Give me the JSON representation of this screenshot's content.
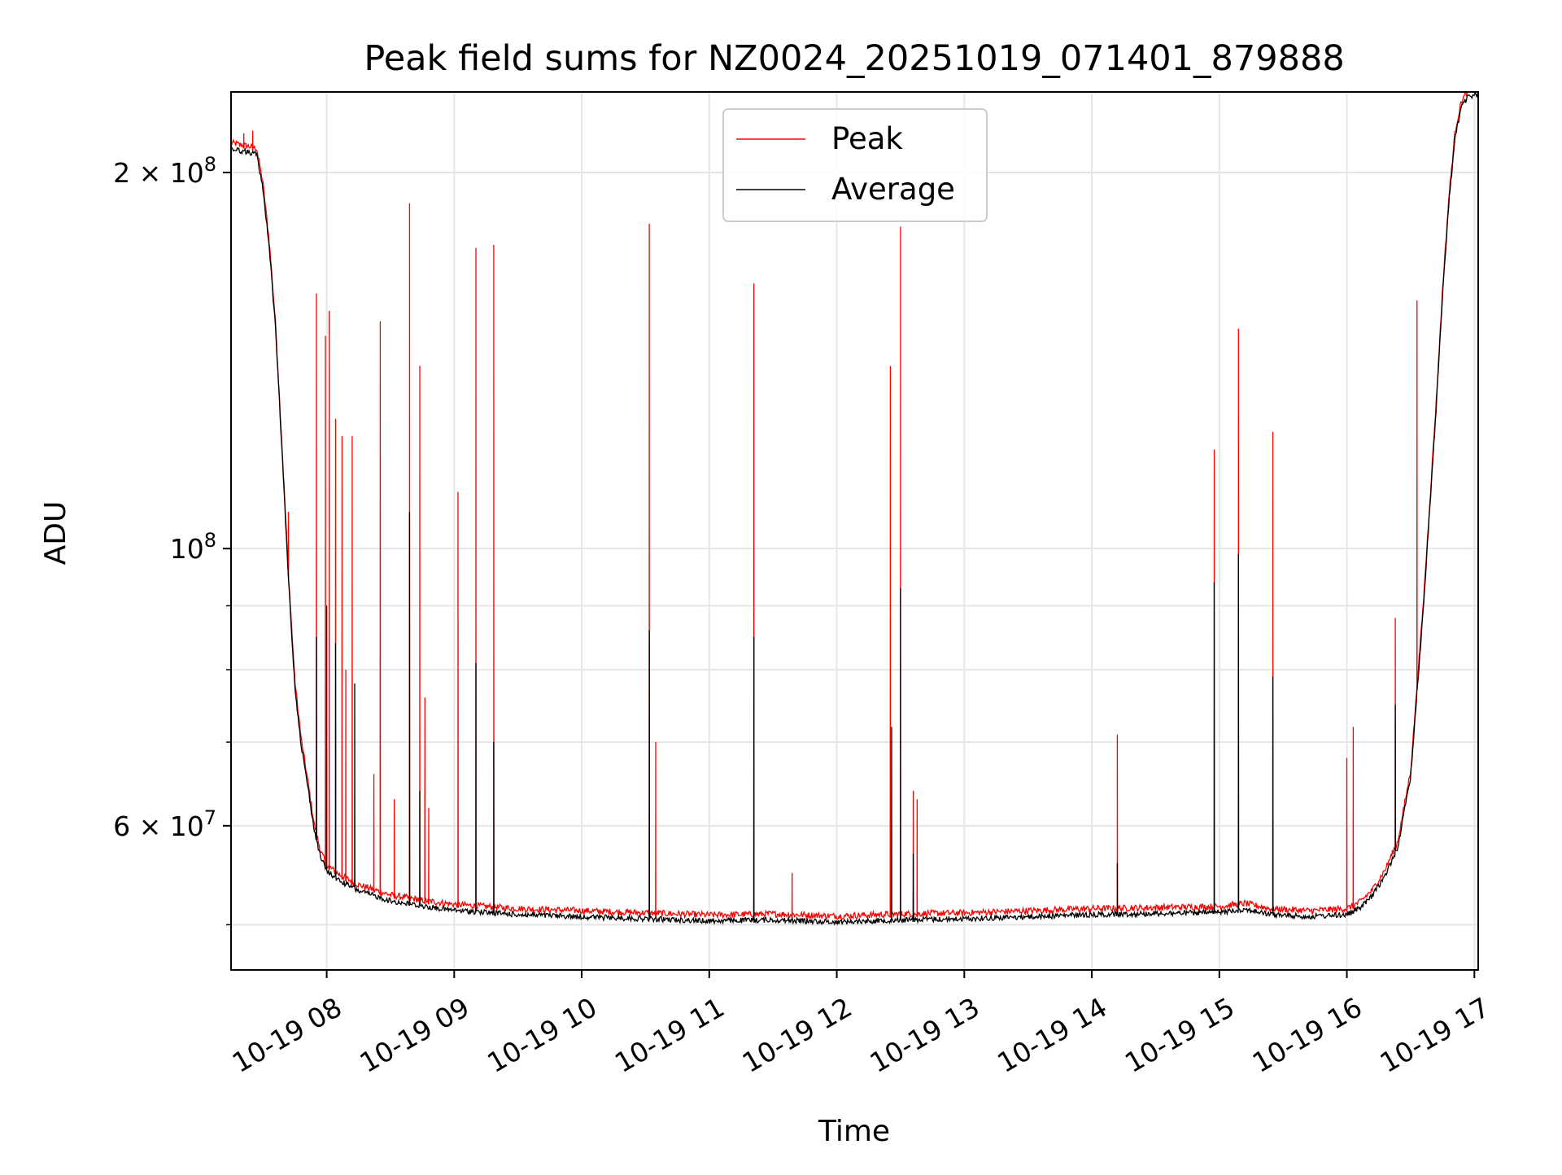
{
  "chart_data": {
    "type": "line",
    "title": "Peak field sums for NZ0024_20251019_071401_879888",
    "xlabel": "Time",
    "ylabel": "ADU",
    "yscale": "log",
    "ylim": [
      46000000,
      232000000
    ],
    "xlim_hours": [
      7.25,
      17.03
    ],
    "grid": true,
    "legend_position": "upper-center",
    "colors": {
      "peak": "#ff0000",
      "average": "#000000",
      "grid": "#e6e6e6",
      "legend_border": "#cccccc"
    },
    "x_ticks": [
      {
        "hour": 8,
        "label": "10-19 08"
      },
      {
        "hour": 9,
        "label": "10-19 09"
      },
      {
        "hour": 10,
        "label": "10-19 10"
      },
      {
        "hour": 11,
        "label": "10-19 11"
      },
      {
        "hour": 12,
        "label": "10-19 12"
      },
      {
        "hour": 13,
        "label": "10-19 13"
      },
      {
        "hour": 14,
        "label": "10-19 14"
      },
      {
        "hour": 15,
        "label": "10-19 15"
      },
      {
        "hour": 16,
        "label": "10-19 16"
      },
      {
        "hour": 17,
        "label": "10-19 17"
      }
    ],
    "y_major_ticks": [
      {
        "value": 60000000,
        "mantissa": "6 × 10",
        "exp": "7"
      },
      {
        "value": 100000000,
        "mantissa": "10",
        "exp": "8"
      },
      {
        "value": 200000000,
        "mantissa": "2 × 10",
        "exp": "8"
      }
    ],
    "y_minor_ticks": [
      50000000,
      70000000,
      80000000,
      90000000
    ],
    "baseline_trend": [
      [
        7.25,
        210000000
      ],
      [
        7.45,
        208000000
      ],
      [
        7.5,
        195000000
      ],
      [
        7.55,
        175000000
      ],
      [
        7.6,
        150000000
      ],
      [
        7.65,
        120000000
      ],
      [
        7.7,
        95000000
      ],
      [
        7.75,
        78000000
      ],
      [
        7.8,
        70000000
      ],
      [
        7.85,
        65000000
      ],
      [
        7.9,
        60000000
      ],
      [
        7.95,
        57000000
      ],
      [
        8.0,
        55500000
      ],
      [
        8.1,
        54500000
      ],
      [
        8.25,
        53500000
      ],
      [
        8.5,
        52500000
      ],
      [
        8.75,
        52000000
      ],
      [
        9.0,
        51600000
      ],
      [
        9.5,
        51200000
      ],
      [
        10.0,
        51000000
      ],
      [
        10.5,
        50800000
      ],
      [
        11.0,
        50600000
      ],
      [
        11.5,
        50700000
      ],
      [
        12.0,
        50500000
      ],
      [
        12.5,
        50700000
      ],
      [
        13.0,
        50800000
      ],
      [
        13.5,
        51000000
      ],
      [
        14.0,
        51200000
      ],
      [
        14.5,
        51300000
      ],
      [
        15.0,
        51400000
      ],
      [
        15.2,
        51700000
      ],
      [
        15.4,
        51200000
      ],
      [
        15.7,
        51000000
      ],
      [
        16.0,
        51200000
      ],
      [
        16.1,
        51800000
      ],
      [
        16.2,
        53000000
      ],
      [
        16.3,
        55000000
      ],
      [
        16.4,
        58000000
      ],
      [
        16.5,
        66000000
      ],
      [
        16.6,
        90000000
      ],
      [
        16.7,
        130000000
      ],
      [
        16.75,
        160000000
      ],
      [
        16.8,
        190000000
      ],
      [
        16.85,
        215000000
      ],
      [
        16.9,
        227000000
      ],
      [
        16.95,
        231000000
      ],
      [
        17.02,
        232000000
      ]
    ],
    "series": [
      {
        "name": "Peak",
        "spikes": [
          [
            7.35,
            215000000
          ],
          [
            7.42,
            216000000
          ],
          [
            7.7,
            107000000
          ],
          [
            7.92,
            160000000
          ],
          [
            7.99,
            148000000
          ],
          [
            8.02,
            155000000
          ],
          [
            8.07,
            127000000
          ],
          [
            8.12,
            123000000
          ],
          [
            8.15,
            80000000
          ],
          [
            8.2,
            123000000
          ],
          [
            8.37,
            66000000
          ],
          [
            8.42,
            152000000
          ],
          [
            8.53,
            63000000
          ],
          [
            8.65,
            189000000
          ],
          [
            8.73,
            140000000
          ],
          [
            8.77,
            76000000
          ],
          [
            8.8,
            62000000
          ],
          [
            9.03,
            111000000
          ],
          [
            9.17,
            174000000
          ],
          [
            9.31,
            175000000
          ],
          [
            10.53,
            182000000
          ],
          [
            10.58,
            70000000
          ],
          [
            11.35,
            163000000
          ],
          [
            11.65,
            55000000
          ],
          [
            12.42,
            140000000
          ],
          [
            12.5,
            181000000
          ],
          [
            12.6,
            64000000
          ],
          [
            12.63,
            63000000
          ],
          [
            14.2,
            71000000
          ],
          [
            14.96,
            120000000
          ],
          [
            15.15,
            150000000
          ],
          [
            15.42,
            124000000
          ],
          [
            16.0,
            68000000
          ],
          [
            16.05,
            72000000
          ],
          [
            16.38,
            88000000
          ],
          [
            16.55,
            158000000
          ]
        ]
      },
      {
        "name": "Average",
        "spikes": [
          [
            7.92,
            85000000
          ],
          [
            8.0,
            90000000
          ],
          [
            8.07,
            84000000
          ],
          [
            8.22,
            78000000
          ],
          [
            8.65,
            107000000
          ],
          [
            8.73,
            64000000
          ],
          [
            9.17,
            81000000
          ],
          [
            9.31,
            70000000
          ],
          [
            10.53,
            86000000
          ],
          [
            11.35,
            85000000
          ],
          [
            12.43,
            72000000
          ],
          [
            12.5,
            93000000
          ],
          [
            12.6,
            57000000
          ],
          [
            14.2,
            56000000
          ],
          [
            14.96,
            94000000
          ],
          [
            15.15,
            99000000
          ],
          [
            15.42,
            79000000
          ],
          [
            16.38,
            75000000
          ],
          [
            16.55,
            77000000
          ]
        ]
      }
    ]
  }
}
